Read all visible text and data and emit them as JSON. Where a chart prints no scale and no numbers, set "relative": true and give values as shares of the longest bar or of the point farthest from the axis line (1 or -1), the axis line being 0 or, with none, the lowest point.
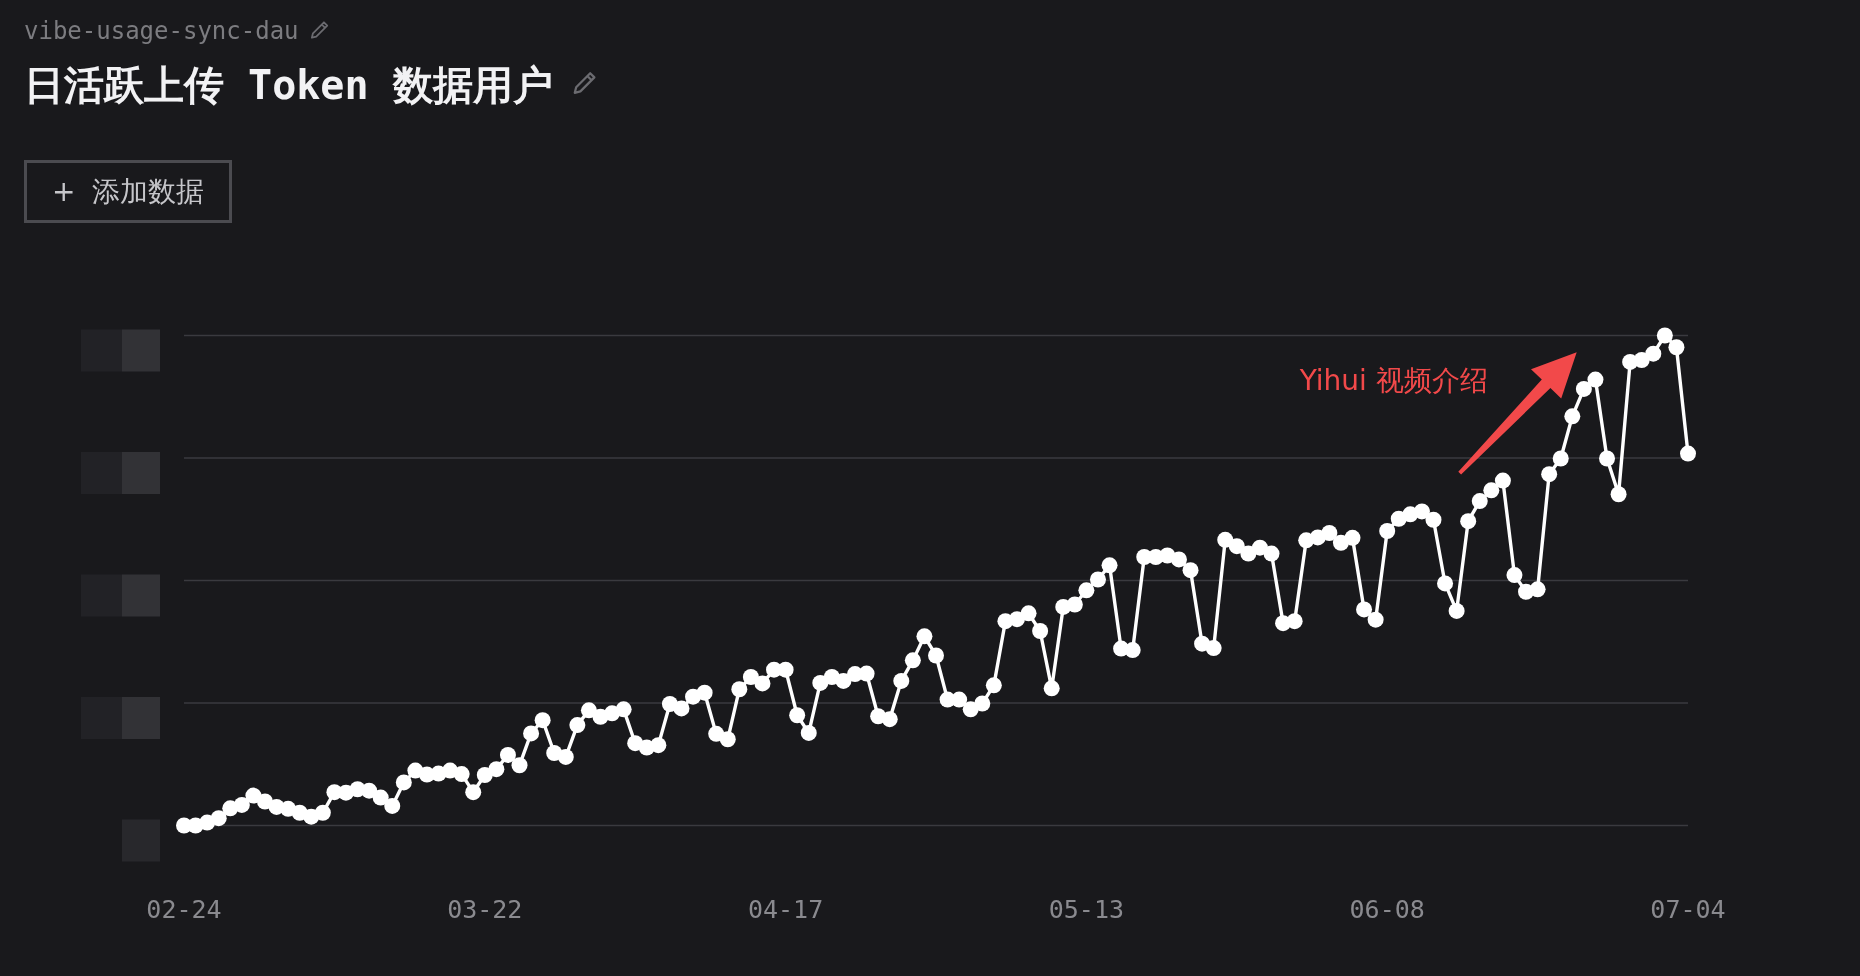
{
  "chart_data": {
    "type": "line",
    "subtitle": "vibe-usage-sync-dau",
    "title": "日活跃上传 Token 数据用户",
    "annotations": [
      "+ 添加数据",
      "Yihui 视频介绍"
    ],
    "relative": true,
    "x": [
      "--02-24",
      "--02-25",
      "--02-26",
      "--02-27",
      "--02-28",
      "--03-01",
      "--03-02",
      "--03-03",
      "--03-04",
      "--03-05",
      "--03-06",
      "--03-07",
      "--03-08",
      "--03-09",
      "--03-10",
      "--03-11",
      "--03-12",
      "--03-13",
      "--03-14",
      "--03-15",
      "--03-16",
      "--03-17",
      "--03-18",
      "--03-19",
      "--03-20",
      "--03-21",
      "--03-22",
      "--03-23",
      "--03-24",
      "--03-25",
      "--03-26",
      "--03-27",
      "--03-28",
      "--03-29",
      "--03-30",
      "--03-31",
      "--04-01",
      "--04-02",
      "--04-03",
      "--04-04",
      "--04-05",
      "--04-06",
      "--04-07",
      "--04-08",
      "--04-09",
      "--04-10",
      "--04-11",
      "--04-12",
      "--04-13",
      "--04-14",
      "--04-15",
      "--04-16",
      "--04-17",
      "--04-18",
      "--04-19",
      "--04-20",
      "--04-21",
      "--04-22",
      "--04-23",
      "--04-24",
      "--04-25",
      "--04-26",
      "--04-27",
      "--04-28",
      "--04-29",
      "--04-30",
      "--05-01",
      "--05-02",
      "--05-03",
      "--05-04",
      "--05-05",
      "--05-06",
      "--05-07",
      "--05-08",
      "--05-09",
      "--05-10",
      "--05-11",
      "--05-12",
      "--05-13",
      "--05-14",
      "--05-15",
      "--05-16",
      "--05-17",
      "--05-18",
      "--05-19",
      "--05-20",
      "--05-21",
      "--05-22",
      "--05-23",
      "--05-24",
      "--05-25",
      "--05-26",
      "--05-27",
      "--05-28",
      "--05-29",
      "--05-30",
      "--05-31",
      "--06-01",
      "--06-02",
      "--06-03",
      "--06-04",
      "--06-05",
      "--06-06",
      "--06-07",
      "--06-08",
      "--06-09",
      "--06-10",
      "--06-11",
      "--06-12",
      "--06-13",
      "--06-14",
      "--06-15",
      "--06-16",
      "--06-17",
      "--06-18",
      "--06-19",
      "--06-20",
      "--06-21",
      "--06-22",
      "--06-23",
      "--06-24",
      "--06-25",
      "--06-26",
      "--06-27",
      "--06-28",
      "--06-29",
      "--06-30",
      "--07-01",
      "--07-02",
      "--07-03",
      "--07-04"
    ],
    "values": [
      0,
      0,
      0.006,
      0.015,
      0.035,
      0.042,
      0.061,
      0.049,
      0.038,
      0.034,
      0.026,
      0.018,
      0.026,
      0.068,
      0.067,
      0.074,
      0.071,
      0.057,
      0.04,
      0.088,
      0.112,
      0.104,
      0.106,
      0.112,
      0.105,
      0.068,
      0.103,
      0.115,
      0.144,
      0.123,
      0.188,
      0.215,
      0.148,
      0.14,
      0.205,
      0.235,
      0.222,
      0.229,
      0.237,
      0.168,
      0.159,
      0.164,
      0.248,
      0.239,
      0.263,
      0.271,
      0.187,
      0.176,
      0.278,
      0.303,
      0.29,
      0.318,
      0.318,
      0.225,
      0.189,
      0.291,
      0.303,
      0.295,
      0.309,
      0.31,
      0.223,
      0.217,
      0.295,
      0.337,
      0.386,
      0.347,
      0.257,
      0.257,
      0.237,
      0.249,
      0.286,
      0.417,
      0.421,
      0.433,
      0.397,
      0.28,
      0.446,
      0.451,
      0.48,
      0.502,
      0.531,
      0.361,
      0.358,
      0.548,
      0.548,
      0.551,
      0.543,
      0.521,
      0.371,
      0.362,
      0.583,
      0.57,
      0.555,
      0.567,
      0.555,
      0.413,
      0.417,
      0.582,
      0.588,
      0.597,
      0.577,
      0.587,
      0.441,
      0.42,
      0.601,
      0.626,
      0.635,
      0.641,
      0.624,
      0.494,
      0.438,
      0.621,
      0.662,
      0.684,
      0.704,
      0.511,
      0.477,
      0.482,
      0.717,
      0.749,
      0.835,
      0.891,
      0.91,
      0.749,
      0.676,
      0.946,
      0.95,
      0.963,
      1,
      0.976,
      0.759
    ],
    "color": "#ffffff",
    "xlim": [
      "--02-24",
      "--07-04"
    ],
    "xticks": [
      {
        "value": "--02-24",
        "label": "02-24"
      },
      {
        "value": "--03-22",
        "label": "03-22"
      },
      {
        "value": "--04-17",
        "label": "04-17"
      },
      {
        "value": "--05-13",
        "label": "05-13"
      },
      {
        "value": "--06-08",
        "label": "06-08"
      },
      {
        "value": "--07-04",
        "label": "07-04"
      }
    ],
    "grid": "y",
    "tick_labels": "x",
    "marker": "circle",
    "line_style": "solid"
  }
}
